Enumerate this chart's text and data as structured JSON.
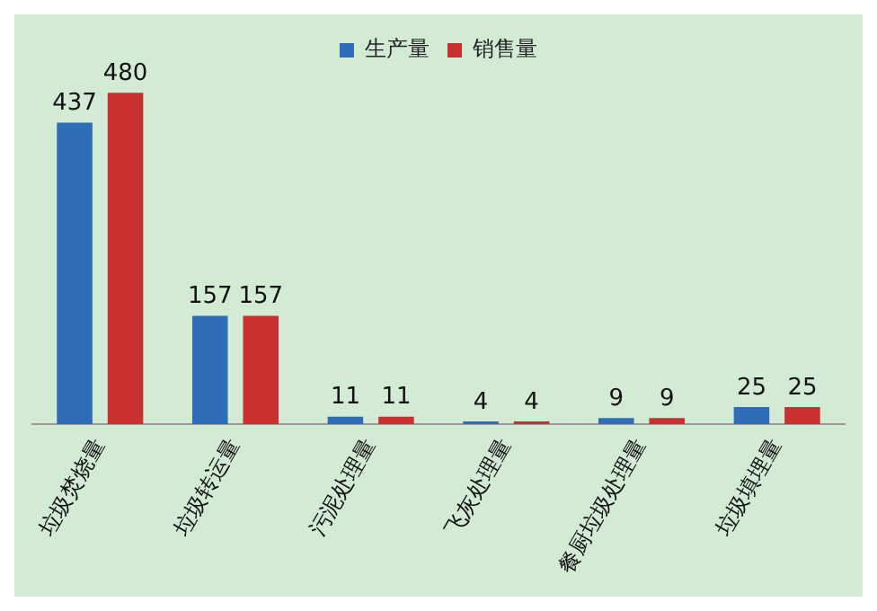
{
  "chart_data": {
    "type": "bar",
    "categories": [
      "垃圾焚烧量",
      "垃圾转运量",
      "污泥处理量",
      "飞灰处理量",
      "餐厨垃圾处理量",
      "垃圾填埋量"
    ],
    "series": [
      {
        "name": "生产量",
        "color": "#2f6db8",
        "values": [
          437,
          157,
          11,
          4,
          9,
          25
        ]
      },
      {
        "name": "销售量",
        "color": "#c8312f",
        "values": [
          480,
          157,
          11,
          4,
          9,
          25
        ]
      }
    ],
    "data_labels": true,
    "legend": "top",
    "grid": false
  }
}
